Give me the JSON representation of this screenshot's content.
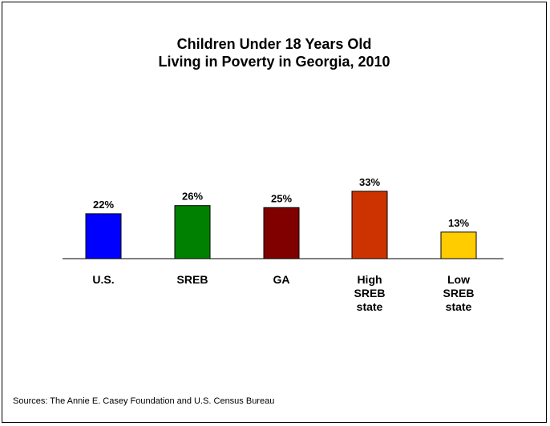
{
  "chart_data": {
    "type": "bar",
    "title": [
      "Children Under 18 Years Old",
      "Living in Poverty in Georgia, 2010"
    ],
    "categories": [
      [
        "U.S."
      ],
      [
        "SREB"
      ],
      [
        "GA"
      ],
      [
        "High",
        "SREB",
        "state"
      ],
      [
        "Low",
        "SREB",
        "state"
      ]
    ],
    "values": [
      22,
      26,
      25,
      33,
      13
    ],
    "value_labels": [
      "22%",
      "26%",
      "25%",
      "33%",
      "13%"
    ],
    "colors": [
      "#0000ff",
      "#008000",
      "#800000",
      "#cc3300",
      "#ffcc00"
    ],
    "ylim": [
      0,
      40
    ],
    "grid": false,
    "legend": "none"
  },
  "source": "Sources: The Annie E. Casey Foundation and U.S. Census Bureau"
}
